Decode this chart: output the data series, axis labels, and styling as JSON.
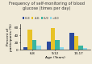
{
  "title": "Frequency of self-monitoring of blood glucose (times per day)",
  "xlabel": "Age (Years)",
  "ylabel": "Percent of\nparticipants (%)",
  "age_groups": [
    "6-8",
    "9-12",
    "13-17"
  ],
  "legend_labels": [
    "0-3",
    "4-6",
    "6-9",
    ">10"
  ],
  "bar_colors": [
    "#2b4a9e",
    "#e8c227",
    "#3ab5a0",
    "#8dd8e8"
  ],
  "data": {
    "0-3": [
      8,
      22,
      46
    ],
    "4-6": [
      55,
      60,
      38
    ],
    "6-9": [
      27,
      28,
      12
    ],
    ">10": [
      12,
      8,
      5
    ]
  },
  "ylim": [
    0,
    70
  ],
  "yticks": [
    0,
    20,
    40,
    60
  ],
  "background_color": "#f0ead8",
  "title_fontsize": 3.6,
  "axis_label_fontsize": 3.2,
  "tick_fontsize": 3.0,
  "legend_fontsize": 3.0
}
